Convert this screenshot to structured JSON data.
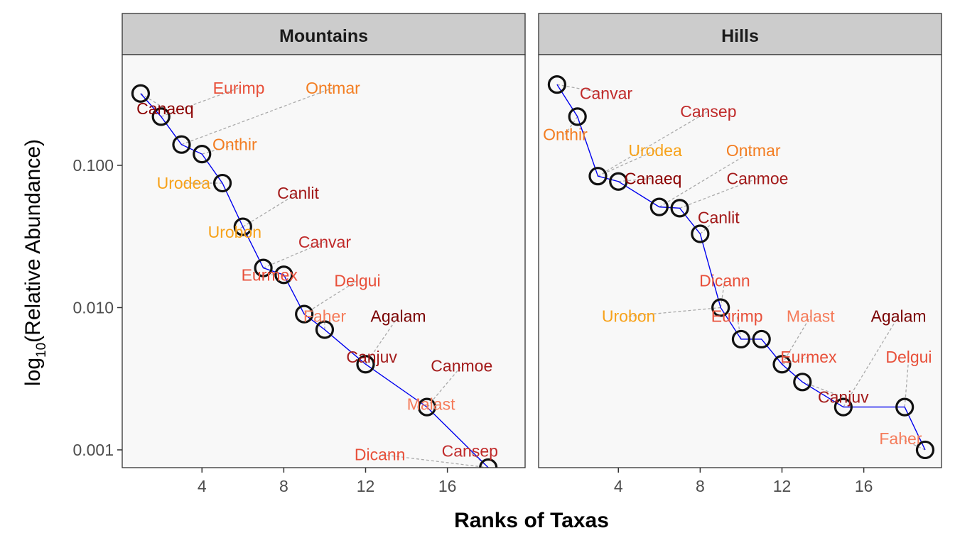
{
  "chart_data": {
    "type": "scatter",
    "xlabel": "Ranks of Taxas",
    "ylabel": "log10(Relative Abundance)",
    "ylabel_parts": {
      "prefix": "log",
      "sub": "10",
      "suffix": "(Relative Abundance)"
    },
    "x_ticks": [
      "4",
      "8",
      "12",
      "16"
    ],
    "y_ticks": [
      "0.001",
      "0.010",
      "0.100"
    ],
    "xlim": [
      0.1,
      19.8
    ],
    "ylim": [
      0.00075,
      0.6
    ],
    "y_scale": "log10",
    "grid": false,
    "colors": {
      "panel_bg": "#f8f8f8",
      "strip_bg": "#cccccc",
      "line": "#0000ee",
      "leader": "#aaaaaa",
      "point_stroke": "#111111"
    },
    "panels": [
      {
        "title": "Mountains",
        "points": [
          {
            "rank": 1,
            "value": 0.32,
            "label": "Canaeq",
            "color": "#8b0000",
            "lx": 2.2,
            "ly": 0.25
          },
          {
            "rank": 2,
            "value": 0.22,
            "label": "Eurimp",
            "color": "#e8503a",
            "lx": 5.8,
            "ly": 0.35
          },
          {
            "rank": 3,
            "value": 0.14,
            "label": "Ontmar",
            "color": "#f37d21",
            "lx": 10.4,
            "ly": 0.35
          },
          {
            "rank": 4,
            "value": 0.12,
            "label": "Onthir",
            "color": "#f37d21",
            "lx": 5.6,
            "ly": 0.14
          },
          {
            "rank": 5,
            "value": 0.075,
            "label": "Urodea",
            "color": "#f7a21a",
            "lx": 3.1,
            "ly": 0.075
          },
          {
            "rank": 6,
            "value": 0.037,
            "label": "Canlit",
            "color": "#a31a1a",
            "lx": 8.7,
            "ly": 0.064
          },
          {
            "rank": 6,
            "value": 0.037,
            "label": "Urobon",
            "color": "#f7a21a",
            "lx": 5.6,
            "ly": 0.034
          },
          {
            "rank": 7,
            "value": 0.019,
            "label": "Canvar",
            "color": "#c02a2a",
            "lx": 10.0,
            "ly": 0.029
          },
          {
            "rank": 8,
            "value": 0.017,
            "label": "Eurmex",
            "color": "#e8503a",
            "lx": 7.3,
            "ly": 0.017
          },
          {
            "rank": 9,
            "value": 0.009,
            "label": "Delgui",
            "color": "#e8503a",
            "lx": 11.6,
            "ly": 0.0155
          },
          {
            "rank": 10,
            "value": 0.007,
            "label": "Faher",
            "color": "#f57b5a",
            "lx": 10.0,
            "ly": 0.0087
          },
          {
            "rank": 12,
            "value": 0.004,
            "label": "Agalam",
            "color": "#7a0000",
            "lx": 13.6,
            "ly": 0.0087
          },
          {
            "rank": 12,
            "value": 0.004,
            "label": "Canjuv",
            "color": "#a31a1a",
            "lx": 12.3,
            "ly": 0.0045
          },
          {
            "rank": 15,
            "value": 0.002,
            "label": "Canmoe",
            "color": "#a31a1a",
            "lx": 16.7,
            "ly": 0.0039
          },
          {
            "rank": 15,
            "value": 0.002,
            "label": "Malast",
            "color": "#f57b5a",
            "lx": 15.2,
            "ly": 0.0021
          },
          {
            "rank": 18,
            "value": 0.00075,
            "label": "Cansep",
            "color": "#c02a2a",
            "lx": 17.1,
            "ly": 0.00098
          },
          {
            "rank": 18,
            "value": 0.00075,
            "label": "Dicann",
            "color": "#e8503a",
            "lx": 12.7,
            "ly": 0.00093
          }
        ]
      },
      {
        "title": "Hills",
        "points": [
          {
            "rank": 1,
            "value": 0.37,
            "label": "Canvar",
            "color": "#c02a2a",
            "lx": 3.4,
            "ly": 0.32
          },
          {
            "rank": 2,
            "value": 0.22,
            "label": "Onthir",
            "color": "#f37d21",
            "lx": 1.4,
            "ly": 0.165
          },
          {
            "rank": 3,
            "value": 0.084,
            "label": "Cansep",
            "color": "#c02a2a",
            "lx": 8.4,
            "ly": 0.24
          },
          {
            "rank": 3,
            "value": 0.084,
            "label": "Urodea",
            "color": "#f7a21a",
            "lx": 5.8,
            "ly": 0.127
          },
          {
            "rank": 4,
            "value": 0.077,
            "label": "Canaeq",
            "color": "#8b0000",
            "lx": 5.7,
            "ly": 0.081
          },
          {
            "rank": 6,
            "value": 0.051,
            "label": "Ontmar",
            "color": "#f37d21",
            "lx": 10.6,
            "ly": 0.127
          },
          {
            "rank": 7,
            "value": 0.05,
            "label": "Canmoe",
            "color": "#a31a1a",
            "lx": 10.8,
            "ly": 0.081
          },
          {
            "rank": 8,
            "value": 0.033,
            "label": "Canlit",
            "color": "#a31a1a",
            "lx": 8.9,
            "ly": 0.043
          },
          {
            "rank": 9,
            "value": 0.01,
            "label": "Dicann",
            "color": "#e8503a",
            "lx": 9.2,
            "ly": 0.0155
          },
          {
            "rank": 9,
            "value": 0.01,
            "label": "Urobon",
            "color": "#f7a21a",
            "lx": 4.5,
            "ly": 0.0087
          },
          {
            "rank": 10,
            "value": 0.006,
            "label": "Eurimp",
            "color": "#e8503a",
            "lx": 9.8,
            "ly": 0.0087
          },
          {
            "rank": 12,
            "value": 0.004,
            "label": "Malast",
            "color": "#f57b5a",
            "lx": 13.4,
            "ly": 0.0087
          },
          {
            "rank": 12,
            "value": 0.004,
            "label": "Eurmex",
            "color": "#e8503a",
            "lx": 13.3,
            "ly": 0.0045
          },
          {
            "rank": 13,
            "value": 0.003,
            "label": "Canjuv",
            "color": "#a31a1a",
            "lx": 15.0,
            "ly": 0.00235
          },
          {
            "rank": 15,
            "value": 0.002,
            "label": "Agalam",
            "color": "#7a0000",
            "lx": 17.7,
            "ly": 0.0087
          },
          {
            "rank": 18,
            "value": 0.002,
            "label": "Delgui",
            "color": "#e8503a",
            "lx": 18.2,
            "ly": 0.0045
          },
          {
            "rank": 19,
            "value": 0.001,
            "label": "Faher",
            "color": "#f57b5a",
            "lx": 17.8,
            "ly": 0.0012
          }
        ],
        "extra_points": [
          {
            "rank": 11,
            "value": 0.006
          }
        ]
      }
    ]
  }
}
